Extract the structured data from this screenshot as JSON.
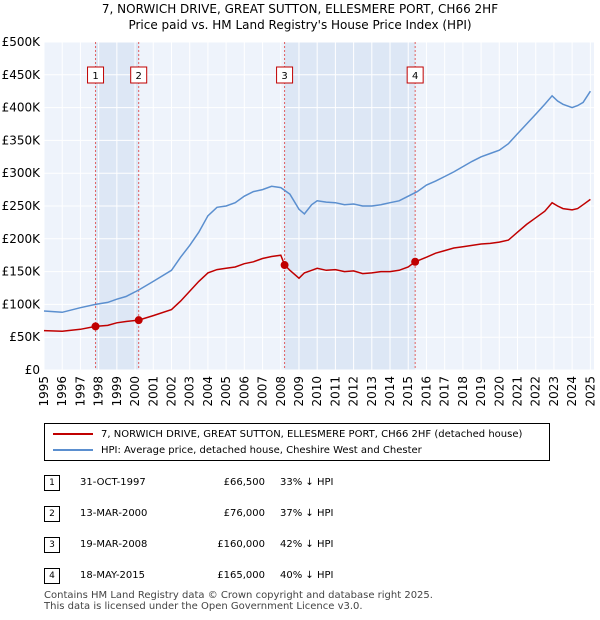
{
  "chart_data": {
    "type": "line",
    "title": "7, NORWICH DRIVE, GREAT SUTTON, ELLESMERE PORT, CH66 2HF",
    "subtitle": "Price paid vs. HM Land Registry's House Price Index (HPI)",
    "xlabel": "",
    "ylabel": "",
    "xlim": [
      1995,
      2025.2
    ],
    "ylim": [
      0,
      500000
    ],
    "x_ticks": [
      "1995",
      "1996",
      "1997",
      "1998",
      "1999",
      "2000",
      "2001",
      "2002",
      "2003",
      "2004",
      "2005",
      "2006",
      "2007",
      "2008",
      "2009",
      "2010",
      "2011",
      "2012",
      "2013",
      "2014",
      "2015",
      "2016",
      "2017",
      "2018",
      "2019",
      "2020",
      "2021",
      "2022",
      "2023",
      "2024",
      "2025"
    ],
    "y_ticks": [
      "£0",
      "£50K",
      "£100K",
      "£150K",
      "£200K",
      "£250K",
      "£300K",
      "£350K",
      "£400K",
      "£450K",
      "£500K"
    ],
    "grid": true,
    "series": [
      {
        "name": "7, NORWICH DRIVE, GREAT SUTTON, ELLESMERE PORT, CH66 2HF (detached house)",
        "color": "#c00000",
        "x": [
          1995.0,
          1996.0,
          1997.0,
          1997.83,
          1998.5,
          1999.0,
          1999.5,
          2000.2,
          2001.0,
          2002.0,
          2002.5,
          2003.0,
          2003.5,
          2004.0,
          2004.5,
          2005.0,
          2005.5,
          2006.0,
          2006.5,
          2007.0,
          2007.5,
          2008.0,
          2008.21,
          2008.5,
          2009.0,
          2009.3,
          2009.7,
          2010.0,
          2010.5,
          2011.0,
          2011.5,
          2012.0,
          2012.5,
          2013.0,
          2013.5,
          2014.0,
          2014.5,
          2015.0,
          2015.38,
          2016.0,
          2016.5,
          2017.0,
          2017.5,
          2018.0,
          2018.5,
          2019.0,
          2019.5,
          2020.0,
          2020.5,
          2021.0,
          2021.5,
          2022.0,
          2022.5,
          2022.9,
          2023.2,
          2023.5,
          2024.0,
          2024.3,
          2024.6,
          2025.0
        ],
        "y": [
          60000,
          59000,
          62000,
          66500,
          68000,
          72000,
          74000,
          76000,
          83000,
          92000,
          105000,
          120000,
          135000,
          148000,
          153000,
          155000,
          157000,
          162000,
          165000,
          170000,
          173000,
          175000,
          160000,
          152000,
          140000,
          148000,
          152000,
          155000,
          152000,
          153000,
          150000,
          151000,
          147000,
          148000,
          150000,
          150000,
          152000,
          157000,
          165000,
          172000,
          178000,
          182000,
          186000,
          188000,
          190000,
          192000,
          193000,
          195000,
          198000,
          210000,
          222000,
          232000,
          242000,
          255000,
          250000,
          246000,
          244000,
          246000,
          252000,
          260000
        ]
      },
      {
        "name": "HPI: Average price, detached house, Cheshire West and Chester",
        "color": "#5b8fcf",
        "x": [
          1995.0,
          1996.0,
          1997.0,
          1997.83,
          1998.5,
          1999.0,
          1999.5,
          2000.2,
          2001.0,
          2002.0,
          2002.5,
          2003.0,
          2003.5,
          2004.0,
          2004.5,
          2005.0,
          2005.5,
          2006.0,
          2006.5,
          2007.0,
          2007.5,
          2008.0,
          2008.5,
          2009.0,
          2009.3,
          2009.7,
          2010.0,
          2010.5,
          2011.0,
          2011.5,
          2012.0,
          2012.5,
          2013.0,
          2013.5,
          2014.0,
          2014.5,
          2015.0,
          2015.5,
          2016.0,
          2016.5,
          2017.0,
          2017.5,
          2018.0,
          2018.5,
          2019.0,
          2019.5,
          2020.0,
          2020.5,
          2021.0,
          2021.5,
          2022.0,
          2022.5,
          2022.9,
          2023.2,
          2023.5,
          2024.0,
          2024.3,
          2024.6,
          2025.0
        ],
        "y": [
          90000,
          88000,
          95000,
          100000,
          103000,
          108000,
          112000,
          122000,
          135000,
          152000,
          172000,
          190000,
          210000,
          235000,
          248000,
          250000,
          255000,
          265000,
          272000,
          275000,
          280000,
          278000,
          268000,
          245000,
          238000,
          252000,
          258000,
          256000,
          255000,
          252000,
          253000,
          250000,
          250000,
          252000,
          255000,
          258000,
          265000,
          272000,
          282000,
          288000,
          295000,
          302000,
          310000,
          318000,
          325000,
          330000,
          335000,
          345000,
          360000,
          375000,
          390000,
          405000,
          418000,
          410000,
          405000,
          400000,
          403000,
          408000,
          425000
        ]
      }
    ],
    "markers": [
      {
        "label": "1",
        "x": 1997.83,
        "y": 66500
      },
      {
        "label": "2",
        "x": 2000.2,
        "y": 76000
      },
      {
        "label": "3",
        "x": 2008.21,
        "y": 160000
      },
      {
        "label": "4",
        "x": 2015.38,
        "y": 165000
      }
    ]
  },
  "legend": {
    "property_label": "7, NORWICH DRIVE, GREAT SUTTON, ELLESMERE PORT, CH66 2HF (detached house)",
    "hpi_label": "HPI: Average price, detached house, Cheshire West and Chester",
    "property_color": "#c00000",
    "hpi_color": "#5b8fcf"
  },
  "sales": [
    {
      "num": "1",
      "date": "31-OCT-1997",
      "price": "£66,500",
      "hpi": "33% ↓ HPI"
    },
    {
      "num": "2",
      "date": "13-MAR-2000",
      "price": "£76,000",
      "hpi": "37% ↓ HPI"
    },
    {
      "num": "3",
      "date": "19-MAR-2008",
      "price": "£160,000",
      "hpi": "42% ↓ HPI"
    },
    {
      "num": "4",
      "date": "18-MAY-2015",
      "price": "£165,000",
      "hpi": "40% ↓ HPI"
    }
  ],
  "footer": {
    "line1": "Contains HM Land Registry data © Crown copyright and database right 2025.",
    "line2": "This data is licensed under the Open Government Licence v3.0."
  }
}
